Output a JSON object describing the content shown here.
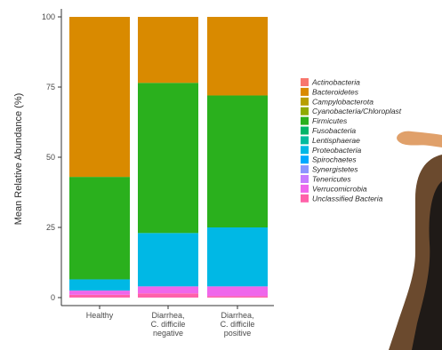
{
  "chart_data": {
    "type": "bar",
    "stacked": true,
    "ylabel": "Mean Relative Abundance (%)",
    "ylim": [
      0,
      100
    ],
    "yticks": [
      "0",
      "25",
      "50",
      "75",
      "100"
    ],
    "grid": false,
    "legend_position": "right",
    "categories": [
      [
        "Healthy"
      ],
      [
        "Diarrhea,",
        "C. difficile",
        "negative"
      ],
      [
        "Diarrhea,",
        "C. difficile",
        "positive"
      ]
    ],
    "series": [
      {
        "name": "Actinobacteria",
        "color": "#f8766d",
        "values": [
          0,
          0,
          0
        ]
      },
      {
        "name": "Bacteroidetes",
        "color": "#d98a00",
        "values": [
          57,
          23.5,
          28
        ]
      },
      {
        "name": "Campylobacterota",
        "color": "#b89e00",
        "values": [
          0,
          0,
          0
        ]
      },
      {
        "name": "Cyanobacteria/Chloroplast",
        "color": "#8faa00",
        "values": [
          0,
          0,
          0
        ]
      },
      {
        "name": "Firmicutes",
        "color": "#2ab01d",
        "values": [
          36.5,
          53.5,
          47
        ]
      },
      {
        "name": "Fusobacteria",
        "color": "#00b569",
        "values": [
          0,
          0,
          0
        ]
      },
      {
        "name": "Lentisphaerae",
        "color": "#00bb9e",
        "values": [
          0,
          0,
          0
        ]
      },
      {
        "name": "Proteobacteria",
        "color": "#00b8e5",
        "values": [
          4,
          19,
          21
        ]
      },
      {
        "name": "Spirochaetes",
        "color": "#00a9ff",
        "values": [
          0,
          0,
          0
        ]
      },
      {
        "name": "Synergistetes",
        "color": "#8c95ff",
        "values": [
          0,
          0,
          0
        ]
      },
      {
        "name": "Tenericutes",
        "color": "#c77cff",
        "values": [
          0,
          0,
          0
        ]
      },
      {
        "name": "Verrucomicrobia",
        "color": "#ef67eb",
        "values": [
          1.5,
          2.5,
          3.5
        ]
      },
      {
        "name": "Unclassified Bacteria",
        "color": "#ff61a9",
        "values": [
          1,
          1.5,
          0.5
        ]
      }
    ]
  }
}
